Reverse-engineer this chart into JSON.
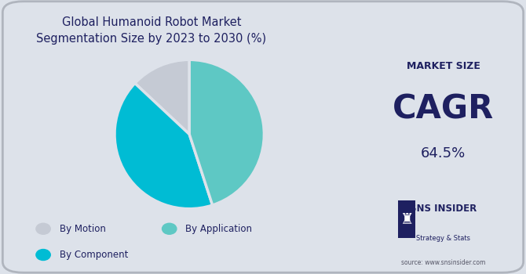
{
  "title": "Global Humanoid Robot Market\nSegmentation Size by 2023 to 2030 (%)",
  "title_fontsize": 10.5,
  "pie_values": [
    13,
    42,
    45
  ],
  "pie_colors": [
    "#c5cad4",
    "#00bcd4",
    "#5ec8c4"
  ],
  "legend_rows": [
    [
      [
        "#c5cad4",
        "By Motion"
      ],
      [
        "#5ec8c4",
        "By Application"
      ]
    ],
    [
      [
        "#00bcd4",
        "By Component"
      ]
    ]
  ],
  "bg_color_left": "#dde2ea",
  "bg_color_right": "#cdd1da",
  "cagr_title": "MARKET SIZE",
  "cagr_main": "CAGR",
  "cagr_value": "64.5%",
  "source_text": "source: www.snsinsider.com",
  "text_color": "#1e2060",
  "startangle": 90
}
